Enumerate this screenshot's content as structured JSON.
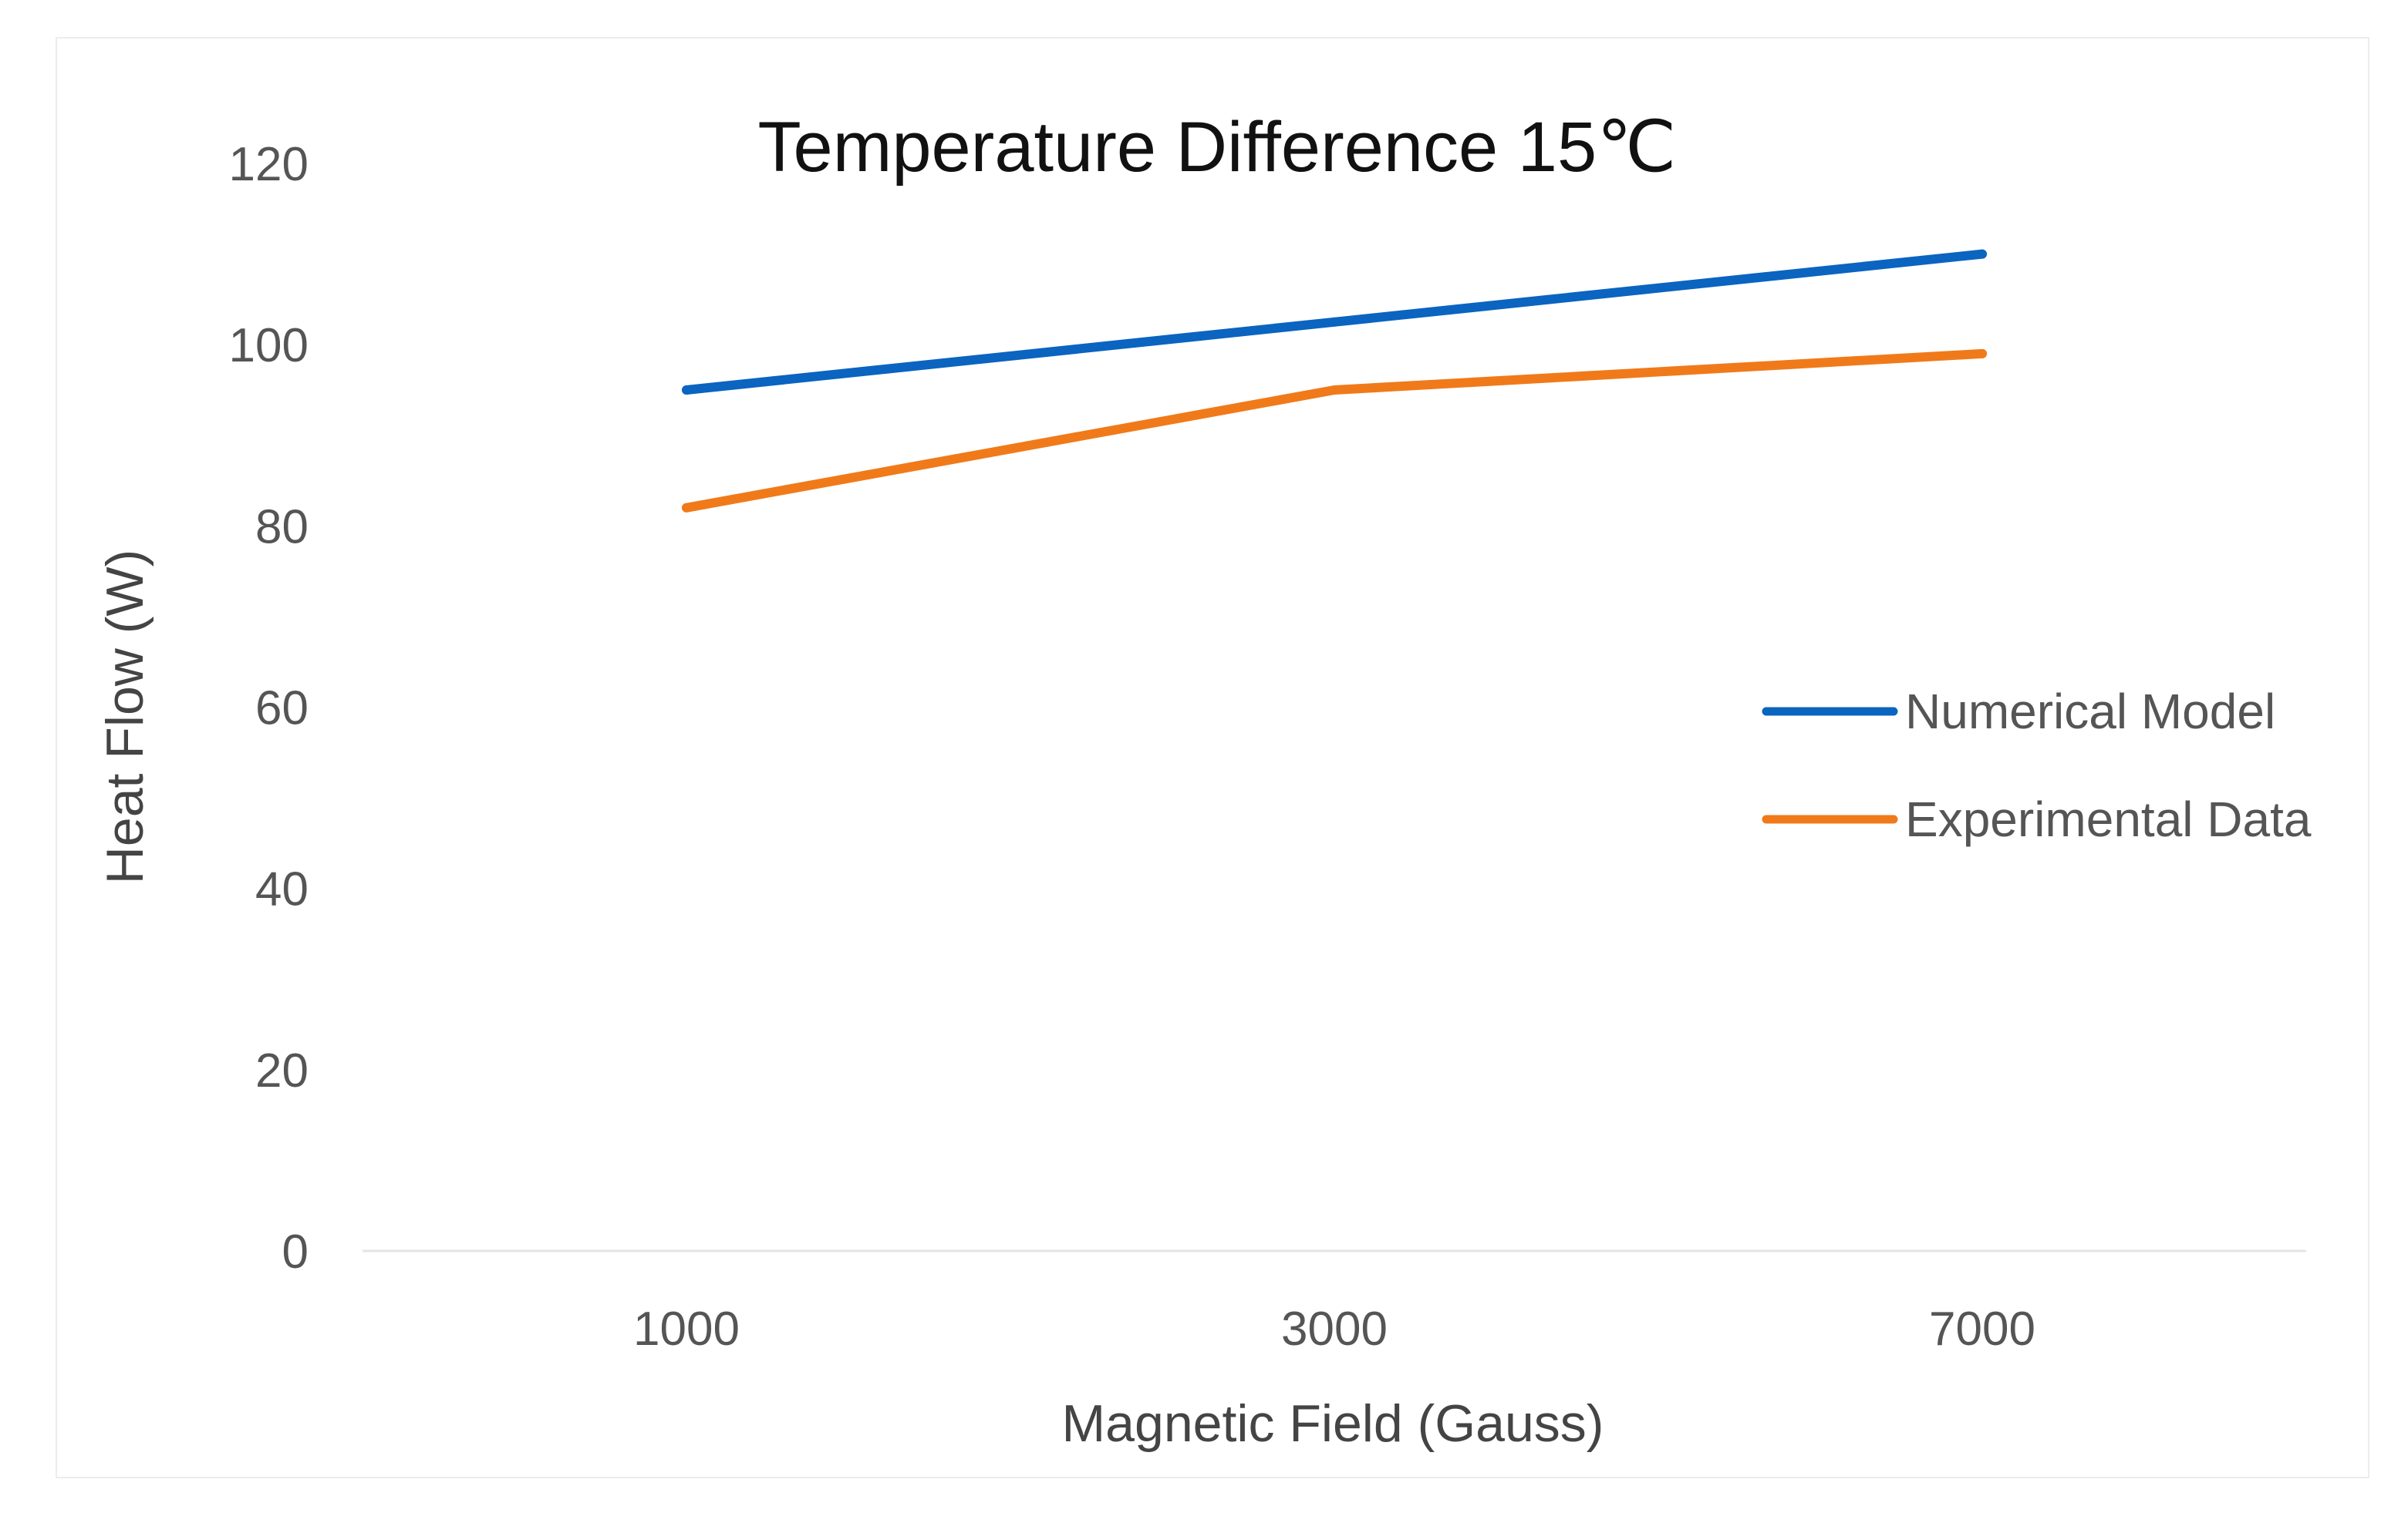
{
  "chart_data": {
    "type": "line",
    "title": "Temperature  Difference 15℃",
    "xlabel": "Magnetic Field (Gauss)",
    "ylabel": "Heat Flow (W)",
    "categories": [
      "1000",
      "3000",
      "7000"
    ],
    "ylim": [
      0,
      120
    ],
    "yticks": [
      "0",
      "20",
      "40",
      "60",
      "80",
      "100",
      "120"
    ],
    "grid": false,
    "legend_position": "right",
    "series": [
      {
        "name": "Numerical Model",
        "color": "#0a64c0",
        "values": [
          95,
          102.5,
          110
        ]
      },
      {
        "name": "Experimental Data",
        "color": "#f07a1a",
        "values": [
          82,
          95,
          99
        ]
      }
    ]
  }
}
